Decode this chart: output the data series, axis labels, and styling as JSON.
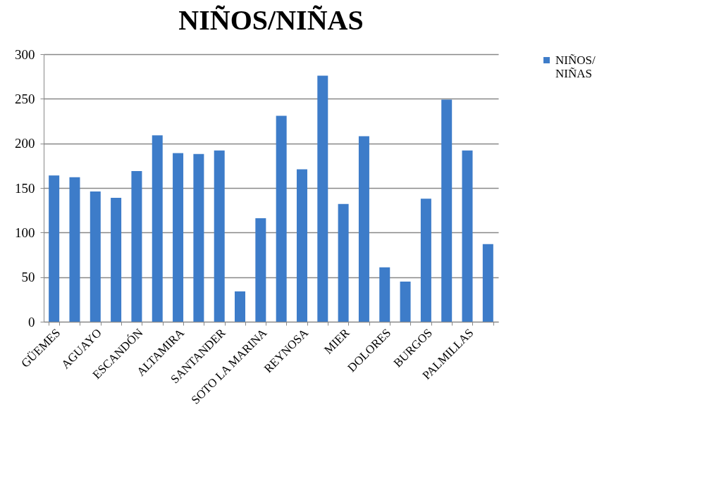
{
  "chart_data": {
    "type": "bar",
    "title": "NIÑOS/NIÑAS",
    "categories": [
      "GÜEMES",
      null,
      "AGUAYO",
      null,
      "ESCANDÓN",
      null,
      "ALTAMIRA",
      null,
      "SANTANDER",
      null,
      "SOTO LA MARINA",
      null,
      "REYNOSA",
      null,
      "MIER",
      null,
      "DOLORES",
      null,
      "BURGOS",
      null,
      "PALMILLAS",
      null
    ],
    "series": [
      {
        "name": "NIÑOS/ NIÑAS",
        "color": "#3d7cc9",
        "values": [
          164,
          162,
          146,
          139,
          169,
          209,
          189,
          188,
          192,
          34,
          116,
          231,
          171,
          276,
          132,
          208,
          61,
          45,
          138,
          249,
          192,
          87
        ]
      }
    ],
    "ylim": [
      0,
      300
    ],
    "yticks": [
      0,
      50,
      100,
      150,
      200,
      250,
      300
    ],
    "grid": "y",
    "legend": "right"
  }
}
